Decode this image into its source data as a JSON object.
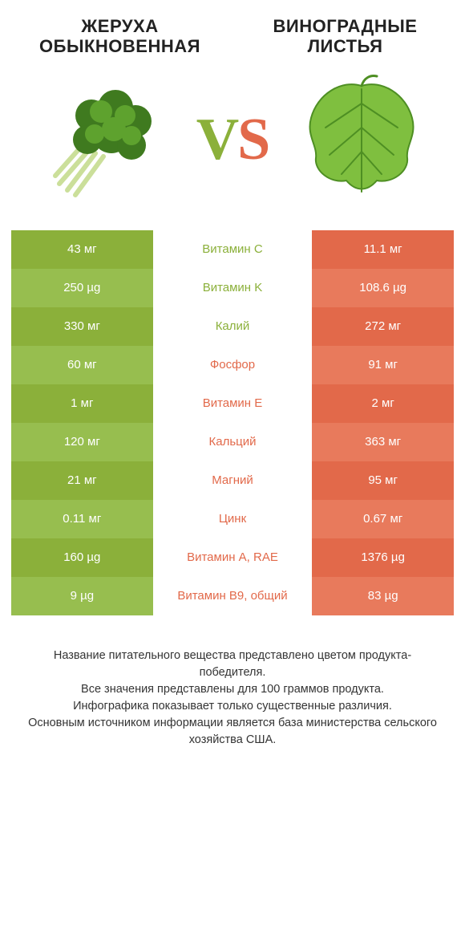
{
  "colors": {
    "left": "#8bb03a",
    "left_alt": "#97be4f",
    "right": "#e2694a",
    "right_alt": "#e87a5c",
    "text": "#343434"
  },
  "titles": {
    "left": "ЖЕРУХА ОБЫКНОВЕННАЯ",
    "right": "ВИНОГРАДНЫЕ ЛИСТЬЯ"
  },
  "vs": {
    "v": "V",
    "s": "S"
  },
  "rows": [
    {
      "label": "Витамин C",
      "left": "43 мг",
      "right": "11.1 мг",
      "winner": "left"
    },
    {
      "label": "Витамин K",
      "left": "250 µg",
      "right": "108.6 µg",
      "winner": "left"
    },
    {
      "label": "Калий",
      "left": "330 мг",
      "right": "272 мг",
      "winner": "left"
    },
    {
      "label": "Фосфор",
      "left": "60 мг",
      "right": "91 мг",
      "winner": "right"
    },
    {
      "label": "Витамин E",
      "left": "1 мг",
      "right": "2 мг",
      "winner": "right"
    },
    {
      "label": "Кальций",
      "left": "120 мг",
      "right": "363 мг",
      "winner": "right"
    },
    {
      "label": "Магний",
      "left": "21 мг",
      "right": "95 мг",
      "winner": "right"
    },
    {
      "label": "Цинк",
      "left": "0.11 мг",
      "right": "0.67 мг",
      "winner": "right"
    },
    {
      "label": "Витамин A, RAE",
      "left": "160 µg",
      "right": "1376 µg",
      "winner": "right"
    },
    {
      "label": "Витамин B9, общий",
      "left": "9 µg",
      "right": "83 µg",
      "winner": "right"
    }
  ],
  "footer": [
    "Название питательного вещества представлено цветом продукта-победителя.",
    "Все значения представлены для 100 граммов продукта.",
    "Инфографика показывает только существенные различия.",
    "Основным источником информации является база министерства сельского хозяйства США."
  ],
  "images": {
    "left_alt": "watercress-illustration",
    "right_alt": "grape-leaf-illustration"
  }
}
